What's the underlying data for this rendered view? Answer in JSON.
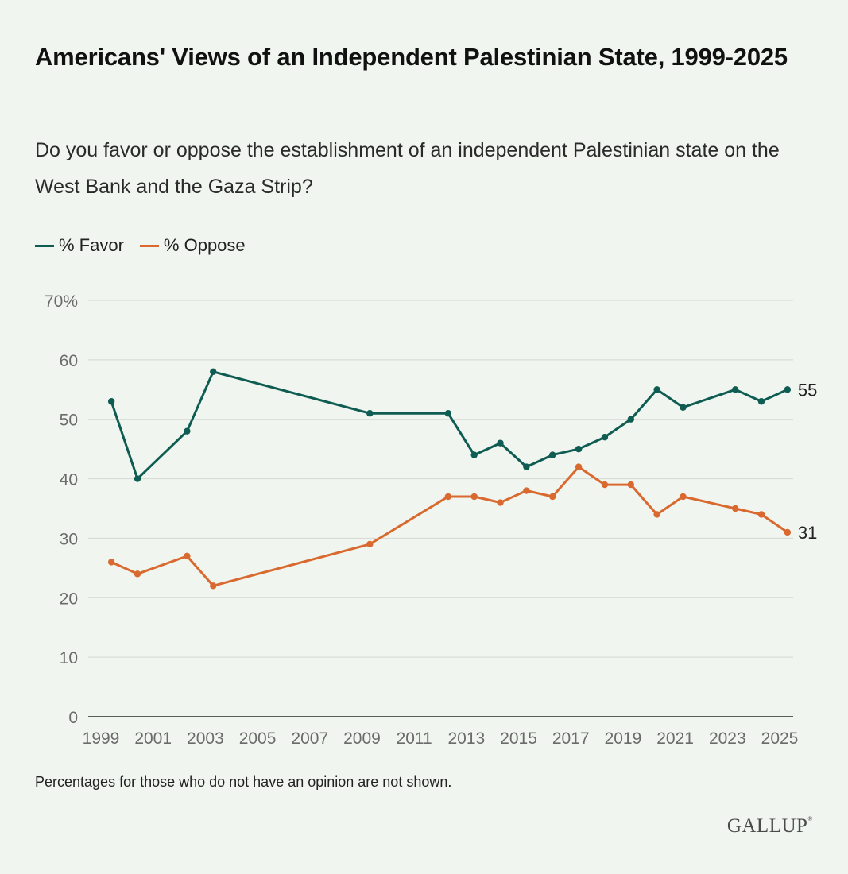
{
  "header": {
    "title": "Americans' Views of an Independent Palestinian State, 1999-2025",
    "subtitle": "Do you favor or oppose the establishment of an independent Palestinian state on the West Bank and the Gaza Strip?"
  },
  "legend": {
    "favor_label": "% Favor",
    "oppose_label": "% Oppose"
  },
  "footer": {
    "note": "Percentages for those who do not have an opinion are not shown.",
    "logo": "GALLUP",
    "logo_mark": "®"
  },
  "colors": {
    "favor": "#0e5c52",
    "oppose": "#d9692f",
    "grid": "#d7ddd6",
    "axis": "#2b2b2b",
    "background": "#f0f6ef"
  },
  "chart_data": {
    "type": "line",
    "title": "Americans' Views of an Independent Palestinian State, 1999-2025",
    "xlabel": "",
    "ylabel": "",
    "xlim": [
      1999,
      2025
    ],
    "ylim": [
      0,
      70
    ],
    "y_ticks": [
      0,
      10,
      20,
      30,
      40,
      50,
      60,
      70
    ],
    "y_tick_labels": [
      "0",
      "10",
      "20",
      "30",
      "40",
      "50",
      "60",
      "70%"
    ],
    "x_ticks": [
      1999,
      2001,
      2003,
      2005,
      2007,
      2009,
      2011,
      2013,
      2015,
      2017,
      2019,
      2021,
      2023,
      2025
    ],
    "x_tick_labels": [
      "1999",
      "2001",
      "2003",
      "2005",
      "2007",
      "2009",
      "2011",
      "2013",
      "2015",
      "2017",
      "2019",
      "2021",
      "2023",
      "2025"
    ],
    "grid": true,
    "legend_position": "top-left",
    "series": [
      {
        "name": "% Favor",
        "key": "favor",
        "x": [
          1999.4,
          2000.4,
          2002.3,
          2003.3,
          2009.3,
          2012.3,
          2013.3,
          2014.3,
          2015.3,
          2016.3,
          2017.3,
          2018.3,
          2019.3,
          2020.3,
          2021.3,
          2023.3,
          2024.3,
          2025.3
        ],
        "values": [
          53,
          40,
          48,
          58,
          51,
          51,
          44,
          46,
          42,
          44,
          45,
          47,
          50,
          55,
          52,
          55,
          53,
          55
        ],
        "end_label": "55"
      },
      {
        "name": "% Oppose",
        "key": "oppose",
        "x": [
          1999.4,
          2000.4,
          2002.3,
          2003.3,
          2009.3,
          2012.3,
          2013.3,
          2014.3,
          2015.3,
          2016.3,
          2017.3,
          2018.3,
          2019.3,
          2020.3,
          2021.3,
          2023.3,
          2024.3,
          2025.3
        ],
        "values": [
          26,
          24,
          27,
          22,
          29,
          37,
          37,
          36,
          38,
          37,
          42,
          39,
          39,
          34,
          37,
          35,
          34,
          31
        ],
        "end_label": "31"
      }
    ]
  }
}
